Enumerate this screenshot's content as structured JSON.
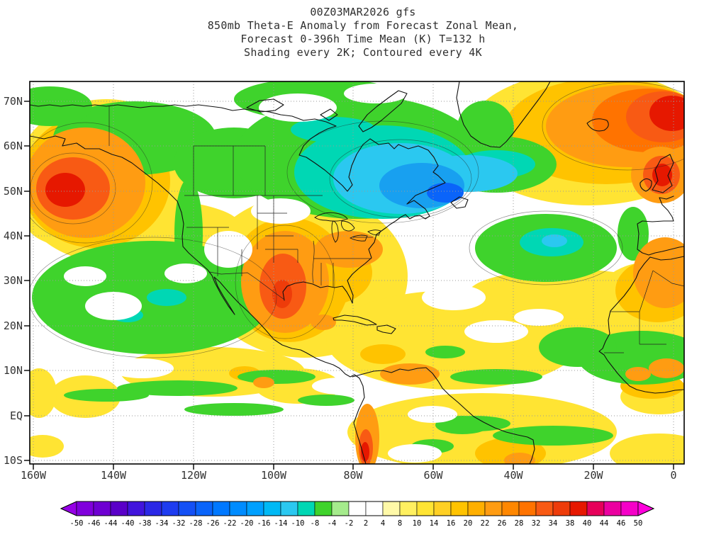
{
  "title": {
    "line1": "00Z03MAR2026 gfs",
    "line2": "850mb Theta-E Anomaly from Forecast Zonal Mean,",
    "line3": "Forecast 0-396h Time Mean (K) T=132 h",
    "line4": "Shading every 2K; Contoured every 4K"
  },
  "axes": {
    "lat_labels": [
      "70N",
      "60N",
      "50N",
      "40N",
      "30N",
      "20N",
      "10N",
      "EQ",
      "10S"
    ],
    "lon_labels": [
      "160W",
      "140W",
      "120W",
      "100W",
      "80W",
      "60W",
      "40W",
      "20W",
      "0"
    ]
  },
  "colorbar": {
    "labels": [
      "-50",
      "-46",
      "-44",
      "-40",
      "-38",
      "-34",
      "-32",
      "-28",
      "-26",
      "-22",
      "-20",
      "-16",
      "-14",
      "-10",
      "-8",
      "-4",
      "-2",
      "2",
      "4",
      "8",
      "10",
      "14",
      "16",
      "20",
      "22",
      "26",
      "28",
      "32",
      "34",
      "38",
      "40",
      "44",
      "46",
      "50"
    ],
    "colors": [
      "#9600E6",
      "#8000DC",
      "#6E00D2",
      "#5A00C8",
      "#4114DC",
      "#2B28E6",
      "#1E3CF0",
      "#1450F5",
      "#0A64FA",
      "#0078FF",
      "#008CFF",
      "#00A0FF",
      "#00B9F5",
      "#2BC8F0",
      "#00D7B4",
      "#3FD32C",
      "#A5EB8C",
      "#FFFFFF",
      "#FFFFFF",
      "#FFF9A8",
      "#FFF060",
      "#FFE433",
      "#FFD024",
      "#FFC300",
      "#FFAF00",
      "#FF9C12",
      "#FF8700",
      "#FF7300",
      "#F85A14",
      "#EE3C0A",
      "#E61800",
      "#E6005A",
      "#EB00A0",
      "#F500C8",
      "#FF00DC"
    ]
  },
  "chart_data": {
    "type": "heatmap",
    "model_run": "00Z03MAR2026 gfs",
    "title": "850mb Theta-E Anomaly from Forecast Zonal Mean, Forecast 0-396h Time Mean (K) T=132 h",
    "subtitle": "Shading every 2K; Contoured every 4K",
    "units": "K",
    "shading_interval_K": 2,
    "contour_interval_K": 4,
    "lon_range_deg": [
      -160,
      2
    ],
    "lat_range_deg": [
      -11,
      75
    ],
    "x_ticks": [
      "160W",
      "140W",
      "120W",
      "100W",
      "80W",
      "60W",
      "40W",
      "20W",
      "0"
    ],
    "y_ticks": [
      "70N",
      "60N",
      "50N",
      "40N",
      "30N",
      "20N",
      "10N",
      "EQ",
      "10S"
    ],
    "grid": "dotted graticule every 10 deg latitude / 20 deg longitude",
    "legend_position": "bottom colorbar with arrow ends",
    "colorbar_boundaries_K": [
      -50,
      -46,
      -44,
      -40,
      -38,
      -34,
      -32,
      -28,
      -26,
      -22,
      -20,
      -16,
      -14,
      -10,
      -8,
      -4,
      -2,
      2,
      4,
      8,
      10,
      14,
      16,
      20,
      22,
      26,
      28,
      32,
      34,
      38,
      40,
      44,
      46,
      50
    ],
    "major_anomalies": [
      {
        "label": "warm anomaly, Gulf of Alaska / NE Pacific",
        "lon": -151,
        "lat": 52,
        "peak_K": 36
      },
      {
        "label": "cold anomaly, Hudson Bay / eastern Canada, blue core near Nova Scotia",
        "lon": -62,
        "lat": 50,
        "peak_K": -24
      },
      {
        "label": "warm anomaly, Mexico / south-central US",
        "lon": -102,
        "lat": 27,
        "peak_K": 32
      },
      {
        "label": "warm anomaly, far NE Atlantic toward Scandinavia (top-right corner)",
        "lon": -2,
        "lat": 67,
        "peak_K": 38
      },
      {
        "label": "warm anomaly, British Isles",
        "lon": -3,
        "lat": 53,
        "peak_K": 36
      },
      {
        "label": "cool anomaly, central subtropical Atlantic",
        "lon": -33,
        "lat": 37,
        "peak_K": -12
      },
      {
        "label": "cool anomaly, eastern subtropical Pacific",
        "lon": -130,
        "lat": 25,
        "peak_K": -8
      },
      {
        "label": "warm anomaly, Andes of Ecuador/Peru",
        "lon": -77,
        "lat": -7,
        "peak_K": 34
      },
      {
        "label": "cool anomaly, West Africa 5-15N",
        "lon": -8,
        "lat": 11,
        "peak_K": -8
      }
    ]
  }
}
